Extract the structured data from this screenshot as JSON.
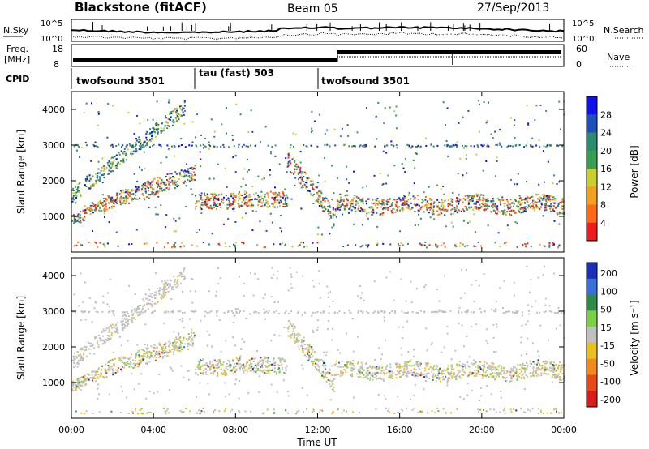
{
  "header": {
    "station": "Blackstone (fitACF)",
    "beam": "Beam 05",
    "date": "27/Sep/2013"
  },
  "nsky_panel": {
    "label": "N.Sky",
    "right_label": "N.Search",
    "left_ticks": [
      "10^5",
      "10^0"
    ],
    "right_ticks": [
      "10^5",
      "10^0"
    ]
  },
  "freq_panel": {
    "label_line1": "Freq.",
    "label_line2": "[MHz]",
    "right_label": "Nave",
    "left_ticks": [
      "18",
      "8"
    ],
    "right_ticks": [
      "60",
      "0"
    ]
  },
  "cpid_panel": {
    "label": "CPID",
    "segments": [
      {
        "name": "twofsound 3501",
        "start_hour": 0,
        "end_hour": 6
      },
      {
        "name": "tau (fast) 503",
        "start_hour": 6,
        "end_hour": 12
      },
      {
        "name": "twofsound 3501",
        "start_hour": 12,
        "end_hour": 24
      }
    ]
  },
  "chart_data": [
    {
      "type": "heatmap",
      "panel": "power",
      "ylabel": "Slant Range [km]",
      "ylim": [
        0,
        4500
      ],
      "xlim": [
        0,
        24
      ],
      "y_ticks": [
        "1000",
        "2000",
        "3000",
        "4000"
      ],
      "colorbar_label": "Power [dB]",
      "colorbar_ticks": [
        "4",
        "8",
        "12",
        "16",
        "20",
        "24",
        "28"
      ],
      "colors": [
        "#1010e8",
        "#1f4fb8",
        "#2e8a6e",
        "#3a9d54",
        "#c8d030",
        "#f2a020",
        "#ff6a18",
        "#ee1c1c"
      ]
    },
    {
      "type": "heatmap",
      "panel": "velocity",
      "ylabel": "Slant Range [km]",
      "ylim": [
        0,
        4500
      ],
      "xlim": [
        0,
        24
      ],
      "y_ticks": [
        "1000",
        "2000",
        "3000",
        "4000"
      ],
      "colorbar_label": "Velocity [m s⁻¹]",
      "colorbar_ticks": [
        "200",
        "100",
        "50",
        "15",
        "-15",
        "-50",
        "-100",
        "-200"
      ],
      "colors": [
        "#1c2fb8",
        "#3b6ed8",
        "#2f8a4a",
        "#7dcf4a",
        "#c0c0c0",
        "#e8c020",
        "#f08a18",
        "#e84818",
        "#d81c1c"
      ]
    }
  ],
  "x_axis": {
    "ticks": [
      "00:00",
      "04:00",
      "08:00",
      "12:00",
      "16:00",
      "20:00",
      "00:00"
    ],
    "label": "Time UT"
  }
}
